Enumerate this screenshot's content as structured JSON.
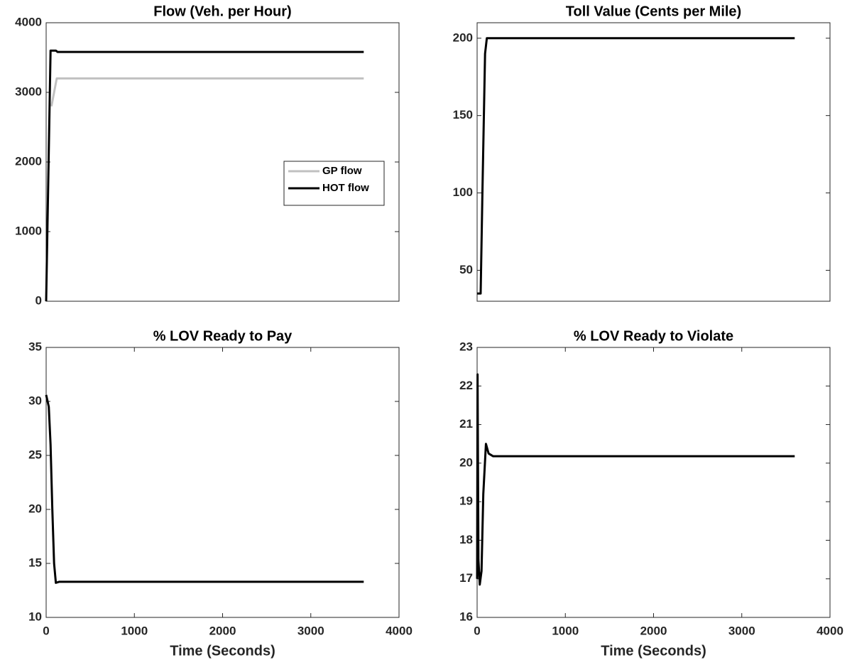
{
  "chart_data": [
    {
      "type": "line",
      "title": "Flow (Veh. per Hour)",
      "xlim": [
        0,
        4000
      ],
      "ylim": [
        0,
        4000
      ],
      "yticks": [
        0,
        1000,
        2000,
        3000,
        4000
      ],
      "legend": "east",
      "series": [
        {
          "name": "GP flow",
          "color": "#c0c0c0",
          "x": [
            60,
            120,
            3600
          ],
          "values": [
            2800,
            3200,
            3200
          ]
        },
        {
          "name": "HOT flow",
          "color": "#000000",
          "x": [
            0,
            50,
            110,
            130,
            3600
          ],
          "values": [
            0,
            3600,
            3600,
            3580,
            3580
          ]
        }
      ]
    },
    {
      "type": "line",
      "title": "Toll Value (Cents per Mile)",
      "xlim": [
        0,
        4000
      ],
      "ylim": [
        30,
        210
      ],
      "yticks": [
        50,
        100,
        150,
        200
      ],
      "series": [
        {
          "color": "#000000",
          "x": [
            0,
            40,
            60,
            90,
            110,
            3600
          ],
          "values": [
            35,
            35,
            100,
            190,
            200,
            200
          ]
        }
      ]
    },
    {
      "type": "line",
      "title": "% LOV Ready to Pay",
      "xlabel": "Time (Seconds)",
      "xlim": [
        0,
        4000
      ],
      "xticks": [
        0,
        1000,
        2000,
        3000,
        4000
      ],
      "ylim": [
        10,
        35
      ],
      "yticks": [
        10,
        15,
        20,
        25,
        30,
        35
      ],
      "series": [
        {
          "color": "#000000",
          "x": [
            0,
            30,
            50,
            70,
            90,
            110,
            150,
            3600
          ],
          "values": [
            30.6,
            29.5,
            26,
            20,
            15,
            13.2,
            13.3,
            13.3
          ]
        }
      ]
    },
    {
      "type": "line",
      "title": "% LOV Ready to Violate",
      "xlabel": "Time (Seconds)",
      "xlim": [
        0,
        4000
      ],
      "xticks": [
        0,
        1000,
        2000,
        3000,
        4000
      ],
      "ylim": [
        16,
        23
      ],
      "yticks": [
        16,
        17,
        18,
        19,
        20,
        21,
        22,
        23
      ],
      "series": [
        {
          "color": "#000000",
          "x": [
            0,
            5,
            15,
            30,
            50,
            70,
            100,
            130,
            180,
            3600
          ],
          "values": [
            17,
            22.3,
            17.5,
            16.85,
            17.2,
            19.2,
            20.5,
            20.25,
            20.18,
            20.18
          ]
        }
      ]
    }
  ]
}
